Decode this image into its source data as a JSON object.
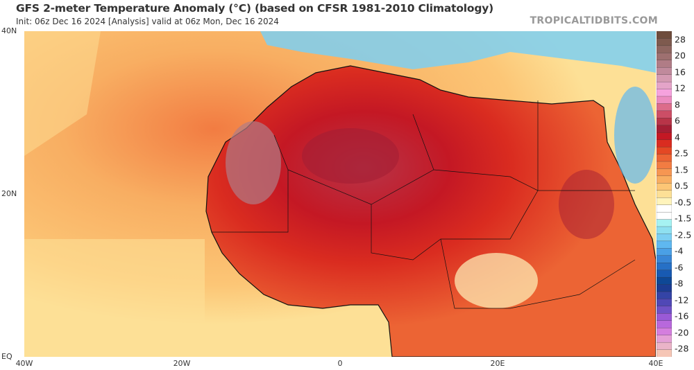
{
  "header": {
    "title": "GFS 2-meter Temperature Anomaly (°C) (based on CFSR 1981-2010 Climatology)",
    "subtitle": "Init: 06z Dec 16 2024   [Analysis]   valid at 06z Mon, Dec 16 2024",
    "brand": "TROPICALTIDBITS.COM"
  },
  "axes": {
    "lat_labels": [
      "40N",
      "20N",
      "EQ"
    ],
    "lon_labels": [
      "40W",
      "20W",
      "0",
      "20E",
      "40E"
    ]
  },
  "colorbar": {
    "labels": [
      "28",
      "20",
      "16",
      "12",
      "8",
      "6",
      "4",
      "2.5",
      "1.5",
      "0.5",
      "-0.5",
      "-1.5",
      "-2.5",
      "-4",
      "-6",
      "-8",
      "-12",
      "-16",
      "-20",
      "-28"
    ],
    "colors": [
      "#6e4c3c",
      "#7e5a4e",
      "#8e6660",
      "#9e7070",
      "#b07c86",
      "#c08a9c",
      "#d49ab2",
      "#e4a4c8",
      "#f6a2de",
      "#ec8cc0",
      "#dc6c8a",
      "#cc4e66",
      "#b83448",
      "#a41e34",
      "#c41824",
      "#da2c20",
      "#e44824",
      "#ec6434",
      "#f27c42",
      "#f69652",
      "#f8ae62",
      "#fcc676",
      "#fde096",
      "#fff4bc",
      "#ffffff",
      "#ffffff",
      "#a6f2f2",
      "#8ee0f0",
      "#7ccff2",
      "#5fb8f0",
      "#4aa0e6",
      "#3886d6",
      "#2670c6",
      "#185ab2",
      "#0e4896",
      "#1c3c92",
      "#3444a6",
      "#5048b6",
      "#7052c6",
      "#9a5ad6",
      "#b868dc",
      "#d47ede",
      "#e4a0d6",
      "#eab4c8",
      "#f6c6b6"
    ]
  }
}
